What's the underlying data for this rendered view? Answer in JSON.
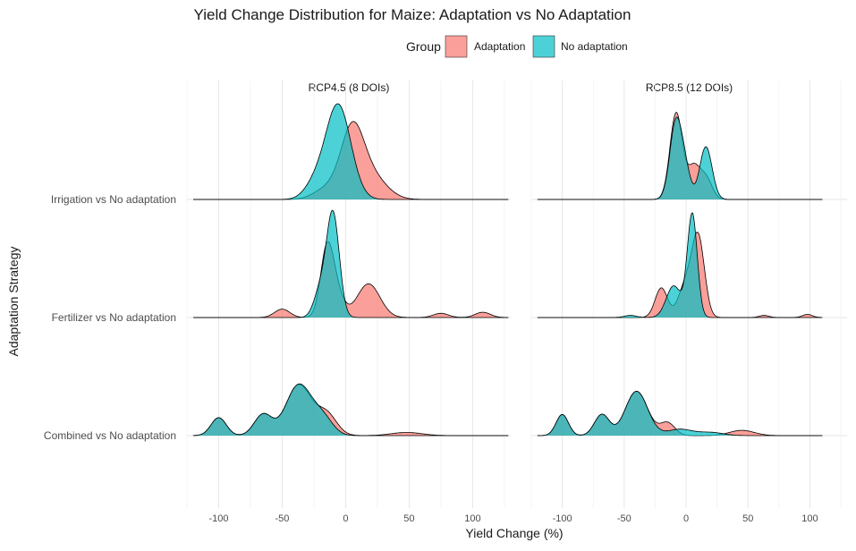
{
  "chart_data": {
    "type": "ridgeline-density",
    "title": "Yield Change Distribution for Maize: Adaptation vs No Adaptation",
    "xlabel": "Yield Change (%)",
    "ylabel": "Adaptation Strategy",
    "xlim": [
      -125,
      130
    ],
    "x_ticks": [
      -100,
      -50,
      0,
      50,
      100
    ],
    "x_tick_labels": [
      "-100",
      "-50",
      "0",
      "50",
      "100"
    ],
    "legend": {
      "title": "Group",
      "position": "top",
      "entries": [
        {
          "name": "Adaptation",
          "color": "#F8766D"
        },
        {
          "name": "No adaptation",
          "color": "#00BFC4"
        }
      ]
    },
    "grid": true,
    "fill_opacity": 0.7,
    "categories": [
      "Irrigation vs No adaptation",
      "Fertilizer vs No adaptation",
      "Combined vs No adaptation"
    ],
    "panels": [
      {
        "title": "RCP4.5 (8 DOIs)",
        "ridges": [
          {
            "category": "Irrigation vs No adaptation",
            "x_range": [
              -120,
              128
            ],
            "series": [
              {
                "name": "Adaptation",
                "peaks": [
                  [
                    -15,
                    0.1,
                    10
                  ],
                  [
                    5,
                    0.62,
                    9
                  ],
                  [
                    20,
                    0.22,
                    12
                  ]
                ]
              },
              {
                "name": "No adaptation",
                "peaks": [
                  [
                    -6,
                    0.9,
                    10
                  ],
                  [
                    -25,
                    0.12,
                    8
                  ]
                ]
              }
            ]
          },
          {
            "category": "Fertilizer vs No adaptation",
            "x_range": [
              -120,
              128
            ],
            "series": [
              {
                "name": "Adaptation",
                "peaks": [
                  [
                    -50,
                    0.08,
                    6
                  ],
                  [
                    -15,
                    0.58,
                    5
                  ],
                  [
                    -8,
                    0.25,
                    6
                  ],
                  [
                    18,
                    0.32,
                    9
                  ],
                  [
                    75,
                    0.04,
                    6
                  ],
                  [
                    108,
                    0.05,
                    6
                  ]
                ]
              },
              {
                "name": "No adaptation",
                "peaks": [
                  [
                    -10,
                    0.98,
                    5
                  ],
                  [
                    -20,
                    0.25,
                    5
                  ]
                ]
              }
            ]
          },
          {
            "category": "Combined vs No adaptation",
            "x_range": [
              -120,
              128
            ],
            "series": [
              {
                "name": "Adaptation",
                "peaks": [
                  [
                    -100,
                    0.17,
                    6
                  ],
                  [
                    -65,
                    0.2,
                    7
                  ],
                  [
                    -37,
                    0.48,
                    10
                  ],
                  [
                    -15,
                    0.2,
                    8
                  ],
                  [
                    48,
                    0.03,
                    12
                  ]
                ]
              },
              {
                "name": "No adaptation",
                "peaks": [
                  [
                    -100,
                    0.17,
                    6
                  ],
                  [
                    -65,
                    0.2,
                    7
                  ],
                  [
                    -37,
                    0.48,
                    10
                  ],
                  [
                    -18,
                    0.16,
                    8
                  ]
                ]
              }
            ]
          }
        ]
      },
      {
        "title": "RCP8.5 (12 DOIs)",
        "ridges": [
          {
            "category": "Irrigation vs No adaptation",
            "x_range": [
              -120,
              110
            ],
            "series": [
              {
                "name": "Adaptation",
                "peaks": [
                  [
                    -8,
                    0.82,
                    5
                  ],
                  [
                    6,
                    0.3,
                    5
                  ],
                  [
                    16,
                    0.2,
                    5
                  ]
                ]
              },
              {
                "name": "No adaptation",
                "peaks": [
                  [
                    -8,
                    0.75,
                    5
                  ],
                  [
                    0,
                    0.2,
                    4
                  ],
                  [
                    16,
                    0.5,
                    5
                  ]
                ]
              }
            ]
          },
          {
            "category": "Fertilizer vs No adaptation",
            "x_range": [
              -120,
              110
            ],
            "series": [
              {
                "name": "Adaptation",
                "peaks": [
                  [
                    -20,
                    0.28,
                    5
                  ],
                  [
                    0,
                    0.32,
                    6
                  ],
                  [
                    10,
                    0.72,
                    5
                  ],
                  [
                    63,
                    0.02,
                    4
                  ],
                  [
                    98,
                    0.03,
                    4
                  ]
                ]
              },
              {
                "name": "No adaptation",
                "peaks": [
                  [
                    -10,
                    0.3,
                    6
                  ],
                  [
                    5,
                    0.98,
                    4
                  ],
                  [
                    -45,
                    0.02,
                    5
                  ]
                ]
              }
            ]
          },
          {
            "category": "Combined vs No adaptation",
            "x_range": [
              -120,
              110
            ],
            "series": [
              {
                "name": "Adaptation",
                "peaks": [
                  [
                    -100,
                    0.2,
                    5
                  ],
                  [
                    -68,
                    0.2,
                    6
                  ],
                  [
                    -40,
                    0.42,
                    9
                  ],
                  [
                    -15,
                    0.12,
                    6
                  ],
                  [
                    45,
                    0.05,
                    10
                  ]
                ]
              },
              {
                "name": "No adaptation",
                "peaks": [
                  [
                    -100,
                    0.2,
                    5
                  ],
                  [
                    -68,
                    0.2,
                    6
                  ],
                  [
                    -40,
                    0.42,
                    9
                  ],
                  [
                    -5,
                    0.06,
                    10
                  ],
                  [
                    20,
                    0.03,
                    10
                  ]
                ]
              }
            ]
          }
        ]
      }
    ]
  }
}
